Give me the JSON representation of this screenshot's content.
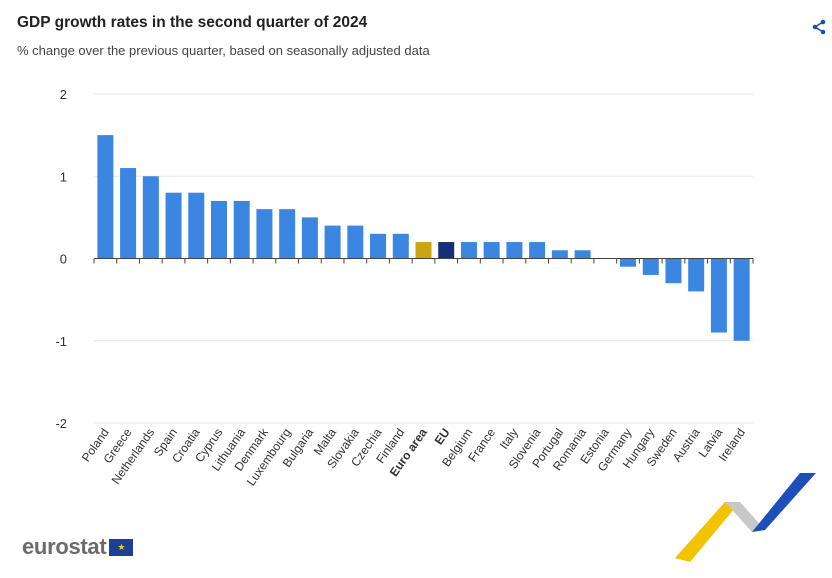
{
  "header": {
    "title": "GDP growth rates in the second quarter of 2024",
    "subtitle": "% change over the previous quarter, based on seasonally adjusted data",
    "share_icon": "share-icon"
  },
  "logo": {
    "text": "eurostat"
  },
  "colors": {
    "bar": "#3b86e0",
    "euro_area": "#c9a514",
    "eu": "#162f78",
    "grid": "#e6e6e6"
  },
  "chart_data": {
    "type": "bar",
    "title": "GDP growth rates in the second quarter of 2024",
    "subtitle": "% change over the previous quarter, based on seasonally adjusted data",
    "xlabel": "",
    "ylabel": "",
    "ylim": [
      -2,
      2
    ],
    "yticks": [
      2,
      1,
      0,
      -1,
      -2
    ],
    "grid": true,
    "categories": [
      "Poland",
      "Greece",
      "Netherlands",
      "Spain",
      "Croatia",
      "Cyprus",
      "Lithuania",
      "Denmark",
      "Luxembourg",
      "Bulgaria",
      "Malta",
      "Slovakia",
      "Czechia",
      "Finland",
      "Euro area",
      "EU",
      "Belgium",
      "France",
      "Italy",
      "Slovenia",
      "Portugal",
      "Romania",
      "Estonia",
      "Germany",
      "Hungary",
      "Sweden",
      "Austria",
      "Latvia",
      "Ireland"
    ],
    "values": [
      1.5,
      1.1,
      1.0,
      0.8,
      0.8,
      0.7,
      0.7,
      0.6,
      0.6,
      0.5,
      0.4,
      0.4,
      0.3,
      0.3,
      0.2,
      0.2,
      0.2,
      0.2,
      0.2,
      0.2,
      0.1,
      0.1,
      0.0,
      -0.1,
      -0.2,
      -0.3,
      -0.4,
      -0.9,
      -1.0
    ],
    "highlight": {
      "Euro area": "euro_area",
      "EU": "eu"
    }
  }
}
